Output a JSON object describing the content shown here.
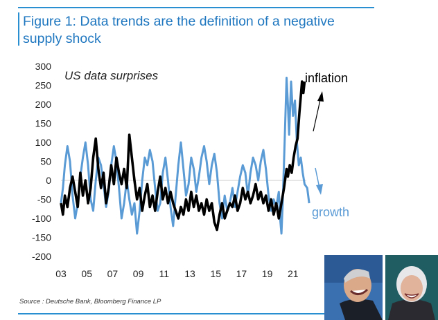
{
  "figure": {
    "title": "Figure 1: Data trends are the definition of a negative supply shock",
    "source": "Source : Deutsche Bank, Bloomberg Finance LP"
  },
  "chart_data": {
    "type": "line",
    "annotation": "US data surprises",
    "ylim": [
      -200,
      300
    ],
    "yticks": [
      300,
      250,
      200,
      150,
      100,
      50,
      0,
      -50,
      -100,
      -150,
      -200
    ],
    "xlim": [
      2003,
      2023
    ],
    "xticks": [
      "03",
      "05",
      "07",
      "09",
      "11",
      "13",
      "15",
      "17",
      "19",
      "21"
    ],
    "series": [
      {
        "name": "growth",
        "color": "#5b9bd5",
        "points": [
          [
            2003.0,
            -60
          ],
          [
            2003.15,
            -20
          ],
          [
            2003.3,
            40
          ],
          [
            2003.5,
            90
          ],
          [
            2003.7,
            50
          ],
          [
            2003.9,
            -40
          ],
          [
            2004.1,
            -100
          ],
          [
            2004.3,
            -60
          ],
          [
            2004.5,
            10
          ],
          [
            2004.7,
            60
          ],
          [
            2004.9,
            100
          ],
          [
            2005.1,
            40
          ],
          [
            2005.3,
            -50
          ],
          [
            2005.5,
            -80
          ],
          [
            2005.7,
            0
          ],
          [
            2005.9,
            60
          ],
          [
            2006.1,
            40
          ],
          [
            2006.3,
            -10
          ],
          [
            2006.5,
            -70
          ],
          [
            2006.7,
            -30
          ],
          [
            2006.9,
            40
          ],
          [
            2007.1,
            90
          ],
          [
            2007.3,
            50
          ],
          [
            2007.5,
            -20
          ],
          [
            2007.7,
            -100
          ],
          [
            2007.9,
            -60
          ],
          [
            2008.1,
            0
          ],
          [
            2008.3,
            -50
          ],
          [
            2008.5,
            -90
          ],
          [
            2008.7,
            -60
          ],
          [
            2008.9,
            -140
          ],
          [
            2009.1,
            -80
          ],
          [
            2009.3,
            0
          ],
          [
            2009.5,
            60
          ],
          [
            2009.7,
            40
          ],
          [
            2009.9,
            80
          ],
          [
            2010.1,
            50
          ],
          [
            2010.3,
            -20
          ],
          [
            2010.5,
            -80
          ],
          [
            2010.7,
            -60
          ],
          [
            2010.9,
            20
          ],
          [
            2011.1,
            60
          ],
          [
            2011.3,
            0
          ],
          [
            2011.5,
            -70
          ],
          [
            2011.7,
            -120
          ],
          [
            2011.9,
            -40
          ],
          [
            2012.1,
            40
          ],
          [
            2012.3,
            100
          ],
          [
            2012.5,
            30
          ],
          [
            2012.7,
            -40
          ],
          [
            2012.9,
            -10
          ],
          [
            2013.1,
            60
          ],
          [
            2013.3,
            30
          ],
          [
            2013.5,
            -30
          ],
          [
            2013.7,
            10
          ],
          [
            2013.9,
            60
          ],
          [
            2014.1,
            90
          ],
          [
            2014.3,
            50
          ],
          [
            2014.5,
            -10
          ],
          [
            2014.7,
            40
          ],
          [
            2014.9,
            70
          ],
          [
            2015.1,
            20
          ],
          [
            2015.3,
            -60
          ],
          [
            2015.5,
            -100
          ],
          [
            2015.7,
            -40
          ],
          [
            2015.9,
            -80
          ],
          [
            2016.1,
            -60
          ],
          [
            2016.3,
            -20
          ],
          [
            2016.5,
            -70
          ],
          [
            2016.7,
            -30
          ],
          [
            2016.9,
            10
          ],
          [
            2017.1,
            40
          ],
          [
            2017.3,
            20
          ],
          [
            2017.5,
            -40
          ],
          [
            2017.7,
            20
          ],
          [
            2017.9,
            60
          ],
          [
            2018.1,
            40
          ],
          [
            2018.3,
            0
          ],
          [
            2018.5,
            50
          ],
          [
            2018.7,
            80
          ],
          [
            2018.9,
            30
          ],
          [
            2019.1,
            -40
          ],
          [
            2019.3,
            -80
          ],
          [
            2019.5,
            -50
          ],
          [
            2019.7,
            -70
          ],
          [
            2019.9,
            -30
          ],
          [
            2020.0,
            -100
          ],
          [
            2020.1,
            -140
          ],
          [
            2020.2,
            -60
          ],
          [
            2020.35,
            100
          ],
          [
            2020.5,
            270
          ],
          [
            2020.6,
            200
          ],
          [
            2020.7,
            120
          ],
          [
            2020.85,
            260
          ],
          [
            2021.0,
            170
          ],
          [
            2021.15,
            210
          ],
          [
            2021.3,
            100
          ],
          [
            2021.45,
            40
          ],
          [
            2021.6,
            60
          ],
          [
            2021.75,
            20
          ],
          [
            2021.9,
            -10
          ],
          [
            2022.1,
            -20
          ],
          [
            2022.25,
            -60
          ]
        ]
      },
      {
        "name": "inflation",
        "color": "#000000",
        "points": [
          [
            2003.0,
            -60
          ],
          [
            2003.15,
            -90
          ],
          [
            2003.3,
            -40
          ],
          [
            2003.5,
            -70
          ],
          [
            2003.7,
            -20
          ],
          [
            2003.9,
            10
          ],
          [
            2004.1,
            -30
          ],
          [
            2004.3,
            -70
          ],
          [
            2004.5,
            20
          ],
          [
            2004.7,
            -40
          ],
          [
            2004.9,
            0
          ],
          [
            2005.1,
            -60
          ],
          [
            2005.3,
            -20
          ],
          [
            2005.5,
            60
          ],
          [
            2005.7,
            110
          ],
          [
            2005.9,
            30
          ],
          [
            2006.1,
            -20
          ],
          [
            2006.3,
            20
          ],
          [
            2006.5,
            -60
          ],
          [
            2006.7,
            -20
          ],
          [
            2006.9,
            40
          ],
          [
            2007.1,
            -10
          ],
          [
            2007.3,
            60
          ],
          [
            2007.5,
            20
          ],
          [
            2007.7,
            -10
          ],
          [
            2007.9,
            30
          ],
          [
            2008.1,
            -20
          ],
          [
            2008.3,
            120
          ],
          [
            2008.5,
            60
          ],
          [
            2008.7,
            0
          ],
          [
            2008.9,
            -50
          ],
          [
            2009.1,
            -20
          ],
          [
            2009.3,
            -80
          ],
          [
            2009.5,
            -40
          ],
          [
            2009.7,
            -10
          ],
          [
            2009.9,
            -70
          ],
          [
            2010.1,
            -40
          ],
          [
            2010.3,
            -80
          ],
          [
            2010.5,
            -30
          ],
          [
            2010.7,
            10
          ],
          [
            2010.9,
            -50
          ],
          [
            2011.1,
            -20
          ],
          [
            2011.3,
            -60
          ],
          [
            2011.5,
            -30
          ],
          [
            2011.7,
            -60
          ],
          [
            2011.9,
            -80
          ],
          [
            2012.1,
            -100
          ],
          [
            2012.3,
            -70
          ],
          [
            2012.5,
            -90
          ],
          [
            2012.7,
            -50
          ],
          [
            2012.9,
            -80
          ],
          [
            2013.1,
            -30
          ],
          [
            2013.3,
            -70
          ],
          [
            2013.5,
            -40
          ],
          [
            2013.7,
            -80
          ],
          [
            2013.9,
            -60
          ],
          [
            2014.1,
            -90
          ],
          [
            2014.3,
            -50
          ],
          [
            2014.5,
            -80
          ],
          [
            2014.7,
            -60
          ],
          [
            2014.9,
            -110
          ],
          [
            2015.1,
            -130
          ],
          [
            2015.3,
            -90
          ],
          [
            2015.5,
            -60
          ],
          [
            2015.7,
            -100
          ],
          [
            2015.9,
            -80
          ],
          [
            2016.1,
            -60
          ],
          [
            2016.3,
            -70
          ],
          [
            2016.5,
            -40
          ],
          [
            2016.7,
            -80
          ],
          [
            2016.9,
            -60
          ],
          [
            2017.1,
            -20
          ],
          [
            2017.3,
            -50
          ],
          [
            2017.5,
            -30
          ],
          [
            2017.7,
            -60
          ],
          [
            2017.9,
            -40
          ],
          [
            2018.1,
            -10
          ],
          [
            2018.3,
            -50
          ],
          [
            2018.5,
            -30
          ],
          [
            2018.7,
            -60
          ],
          [
            2018.9,
            -40
          ],
          [
            2019.1,
            -80
          ],
          [
            2019.3,
            -50
          ],
          [
            2019.5,
            -90
          ],
          [
            2019.7,
            -60
          ],
          [
            2019.9,
            -100
          ],
          [
            2020.1,
            -60
          ],
          [
            2020.3,
            -20
          ],
          [
            2020.5,
            30
          ],
          [
            2020.6,
            10
          ],
          [
            2020.75,
            40
          ],
          [
            2020.9,
            20
          ],
          [
            2021.05,
            60
          ],
          [
            2021.2,
            90
          ],
          [
            2021.35,
            110
          ],
          [
            2021.5,
            180
          ],
          [
            2021.6,
            220
          ],
          [
            2021.7,
            260
          ],
          [
            2021.8,
            230
          ],
          [
            2021.9,
            260
          ]
        ]
      }
    ]
  }
}
